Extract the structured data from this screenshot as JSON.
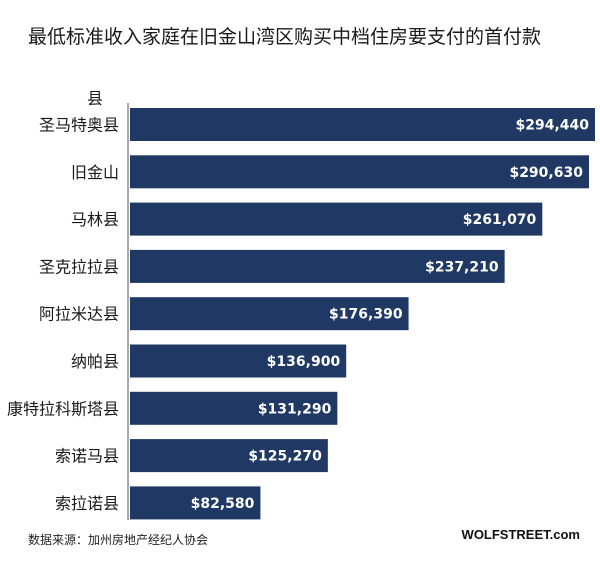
{
  "title": "最低标准收入家庭在旧金山湾区购买中档住房要支付的首付款",
  "source": "数据来源：加州房地产经纪人协会",
  "brand": "WOLFSTREET.com",
  "colors": {
    "bar": "#1f3864",
    "axis": "#555555"
  },
  "chart_data": {
    "type": "bar",
    "orientation": "horizontal",
    "category_axis_label": "县",
    "categories": [
      "圣马特奥县",
      "旧金山",
      "马林县",
      "圣克拉拉县",
      "阿拉米达县",
      "纳帕县",
      "康特拉科斯塔县",
      "索诺马县",
      "索拉诺县"
    ],
    "values": [
      294440,
      290630,
      261070,
      237210,
      176390,
      136900,
      131290,
      125270,
      82580
    ],
    "value_labels": [
      "$294,440",
      "$290,630",
      "$261,070",
      "$237,210",
      "$176,390",
      "$136,900",
      "$131,290",
      "$125,270",
      "$82,580"
    ],
    "xlim": [
      0,
      294440
    ],
    "grid": false,
    "legend": "none"
  }
}
